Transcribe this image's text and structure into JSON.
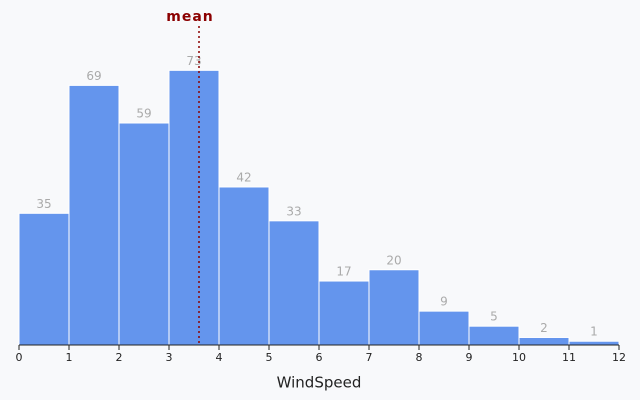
{
  "chart_data": {
    "type": "histogram",
    "bins": [
      0,
      1,
      2,
      3,
      4,
      5,
      6,
      7,
      8,
      9,
      10,
      11,
      12
    ],
    "values": [
      35,
      69,
      59,
      73,
      42,
      33,
      17,
      20,
      9,
      5,
      2,
      1
    ],
    "color": "#6495ed",
    "xlabel": "WindSpeed",
    "xlim": [
      0,
      12
    ],
    "xticks": [
      0,
      1,
      2,
      3,
      4,
      5,
      6,
      7,
      8,
      9,
      10,
      11,
      12
    ],
    "ylim": [
      0,
      80
    ],
    "mean": {
      "label": "mean",
      "value": 3.6,
      "color": "#8b0000"
    }
  }
}
